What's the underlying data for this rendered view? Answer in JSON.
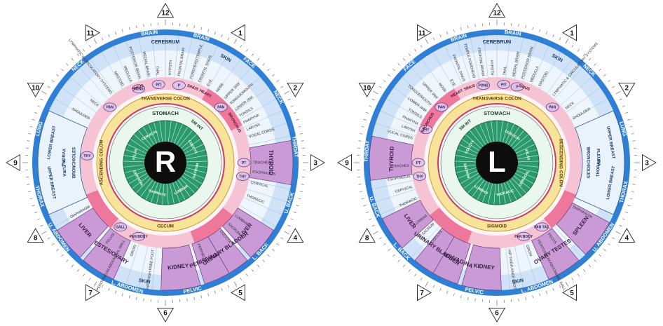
{
  "charts": [
    {
      "id": "right",
      "center_letter": "R",
      "clock_numbers": [
        "12",
        "1",
        "2",
        "3",
        "4",
        "5",
        "6",
        "7",
        "8",
        "9",
        "10",
        "11"
      ],
      "outer_labels": [
        {
          "angle": 353,
          "text": "BRAIN"
        },
        {
          "angle": 16,
          "text": "BRAIN"
        },
        {
          "angle": 40,
          "text": "FACE"
        },
        {
          "angle": 60,
          "text": "NECK"
        },
        {
          "angle": 83,
          "text": "THROAT"
        },
        {
          "angle": 108,
          "text": "U. BACK"
        },
        {
          "angle": 133,
          "text": "L. BACK"
        },
        {
          "angle": 168,
          "text": "PELVIC"
        },
        {
          "angle": 197,
          "text": "L. ABDOMEN"
        },
        {
          "angle": 235,
          "text": "U. ABDOMEN"
        },
        {
          "angle": 255,
          "text": "THORAX"
        },
        {
          "angle": 285,
          "text": "LUNG"
        },
        {
          "angle": 318,
          "text": "NECK"
        }
      ],
      "band_labels": [
        {
          "angle": 0,
          "text": "CEREBRUM"
        },
        {
          "angle": 30,
          "text": "SKIN"
        },
        {
          "angle": 190,
          "text": "SKIN"
        }
      ],
      "spoke_labels": [
        {
          "angle": 322,
          "text": "LYMPHATIC & CIRCULATORY SYSTEMS"
        },
        {
          "angle": 331,
          "text": "MASTOID"
        },
        {
          "angle": 337,
          "text": "MEDULLA"
        },
        {
          "angle": 343,
          "text": "POSTERIOR BRAIN"
        },
        {
          "angle": 349,
          "text": "MEDIAL BRAIN"
        },
        {
          "angle": 355,
          "text": "THAL"
        },
        {
          "angle": 3,
          "text": "HYPOTH"
        },
        {
          "angle": 9,
          "text": "FRONTAL BRAIN"
        },
        {
          "angle": 17,
          "text": "FOREHEAD/TEMPLE"
        },
        {
          "angle": 23,
          "text": "FRONTAL SINUS"
        },
        {
          "angle": 29,
          "text": "EYE"
        },
        {
          "angle": 36,
          "text": "NOSE"
        },
        {
          "angle": 43,
          "text": "UPPER JAW"
        },
        {
          "angle": 48,
          "text": "TONGUE/MOUTH"
        },
        {
          "angle": 53,
          "text": "LOWER JAW"
        },
        {
          "angle": 58,
          "text": "TONSILS"
        },
        {
          "angle": 63,
          "text": "PHARYNX"
        },
        {
          "angle": 68,
          "text": "LARYNX"
        },
        {
          "angle": 73,
          "text": "VOCAL CORDS"
        },
        {
          "angle": 90,
          "text": "TRACHEA"
        },
        {
          "angle": 96,
          "text": "ESOPHAGUS"
        },
        {
          "angle": 103,
          "text": "CERVICAL"
        },
        {
          "angle": 112,
          "text": "THORACIC"
        },
        {
          "angle": 127,
          "text": "LUMBAR"
        },
        {
          "angle": 134,
          "text": "SACRUM"
        },
        {
          "angle": 141,
          "text": "COCCYX"
        },
        {
          "angle": 158,
          "text": "PERINEUM"
        },
        {
          "angle": 188,
          "text": "HIP THIGH KNEE FOOT"
        },
        {
          "angle": 200,
          "text": "GROIN"
        },
        {
          "angle": 208,
          "text": "PERITONEUM ABDOMINAL WALL"
        },
        {
          "angle": 216,
          "text": "PELVIS"
        },
        {
          "angle": 240,
          "text": "DIAPHRAGM"
        },
        {
          "angle": 248,
          "text": "ARM"
        },
        {
          "angle": 256,
          "text": "HAND"
        },
        {
          "angle": 300,
          "text": "SHOULDER"
        },
        {
          "angle": 310,
          "text": "NECK"
        }
      ],
      "boxes": [
        {
          "name": "thyroid-box",
          "text": "THYROID"
        },
        {
          "name": "liver-box",
          "text": "LIVER"
        },
        {
          "name": "kidney-box",
          "text": "KIDNEY"
        },
        {
          "name": "testes-ovary-box",
          "text": "TESTES/OVARY"
        },
        {
          "name": "liver-box-2",
          "text": "LIVER"
        },
        {
          "name": "penis-vagina-box",
          "text": "PENIS/VAGINA"
        },
        {
          "name": "urinary-bladder-box",
          "text": "URINARY BLADDER"
        },
        {
          "name": "prostate-uterus-box",
          "text": "PROSTATE/UTERUS"
        }
      ],
      "lung_labels": {
        "upper": "UPPER BREAST",
        "lung": "LUNG",
        "pleura": "PLEURA",
        "thorax": "THORAX",
        "lower": "LOWER BREAST",
        "bronchioles": "BRONCHIOLES"
      },
      "small_bubbles": [
        "PAN",
        "PONS",
        "PIT",
        "P",
        "PAN",
        "PT",
        "THY",
        "THY",
        "GALL",
        "PAN BODY"
      ],
      "digestive": {
        "colon_top": "TRANSVERSE COLON",
        "colon_side": "ASCENDING COLON",
        "colon_bottom": "CECUM",
        "stomach": "STOMACH",
        "small_int": "SM INT",
        "sigmoid": "",
        "spine_ring": [
          "CERVICAL",
          "ATLAS",
          "CERVICAL",
          "THORACIC",
          "LUMBAR",
          "SACRUM",
          "COCCYX"
        ]
      },
      "sinus_labels": [
        "SINUS",
        "SINUS",
        "HEART",
        "BRONCHUS"
      ],
      "colors": {
        "outer_ring": "#2f7fd6",
        "band_light": "#cfe2f7",
        "band_pink": "#f5c3d4",
        "band_red": "#e83a6c",
        "box_purple": "#c99ad6",
        "colon_yellow": "#f7e49a",
        "collarette": "#c63a76",
        "center_green": "#2a9a6e"
      }
    },
    {
      "id": "left",
      "center_letter": "L",
      "clock_numbers": [
        "12",
        "1",
        "2",
        "3",
        "4",
        "5",
        "6",
        "7",
        "8",
        "9",
        "10",
        "11"
      ],
      "outer_labels": [
        {
          "angle": 343,
          "text": "BRAIN"
        },
        {
          "angle": 7,
          "text": "BRAIN"
        },
        {
          "angle": 45,
          "text": "NECK"
        },
        {
          "angle": 318,
          "text": "FACE"
        },
        {
          "angle": 275,
          "text": "THROAT"
        },
        {
          "angle": 250,
          "text": "U. BACK"
        },
        {
          "angle": 227,
          "text": "L. BACK"
        },
        {
          "angle": 190,
          "text": "PELVIC"
        },
        {
          "angle": 162,
          "text": "L. ABDOMEN"
        },
        {
          "angle": 125,
          "text": "U. ABDOMEN"
        },
        {
          "angle": 103,
          "text": "THORAX"
        },
        {
          "angle": 75,
          "text": "LUNG"
        }
      ],
      "band_labels": [
        {
          "angle": 0,
          "text": "CEREBRUM"
        },
        {
          "angle": 30,
          "text": "SKIN"
        },
        {
          "angle": 170,
          "text": "SKIN"
        }
      ],
      "spoke_labels": [
        {
          "angle": 338,
          "text": "FRONTAL SINUS"
        },
        {
          "angle": 345,
          "text": "TEMPLE FOREHEAD"
        },
        {
          "angle": 351,
          "text": "FRONTAL BRAIN"
        },
        {
          "angle": 357,
          "text": "HYPOTH"
        },
        {
          "angle": 5,
          "text": "THAL"
        },
        {
          "angle": 11,
          "text": "MEDIAL BRAIN"
        },
        {
          "angle": 17,
          "text": "POSTERIOR BRAIN"
        },
        {
          "angle": 23,
          "text": "MEDULLA"
        },
        {
          "angle": 29,
          "text": "MASTOID"
        },
        {
          "angle": 40,
          "text": "LYMPHATIC & CIRCULATORY SYSTEMS"
        },
        {
          "angle": 52,
          "text": "NECK"
        },
        {
          "angle": 60,
          "text": "SHOULDER"
        },
        {
          "angle": 331,
          "text": "EYE"
        },
        {
          "angle": 324,
          "text": "NOSE"
        },
        {
          "angle": 317,
          "text": "UPPER JAW"
        },
        {
          "angle": 311,
          "text": "TONGUE/MOUTH"
        },
        {
          "angle": 306,
          "text": "LOWER JAW"
        },
        {
          "angle": 301,
          "text": "TONSILS"
        },
        {
          "angle": 296,
          "text": "PHARYNX"
        },
        {
          "angle": 291,
          "text": "LARYNX"
        },
        {
          "angle": 286,
          "text": "VOCAL CORDS"
        },
        {
          "angle": 268,
          "text": "TRACHEA"
        },
        {
          "angle": 261,
          "text": "ESOPHAGUS"
        },
        {
          "angle": 254,
          "text": "CERVICAL"
        },
        {
          "angle": 246,
          "text": "THORACIC"
        },
        {
          "angle": 233,
          "text": "LUMBAR"
        },
        {
          "angle": 226,
          "text": "SACRUM"
        },
        {
          "angle": 219,
          "text": "COCCYX"
        },
        {
          "angle": 172,
          "text": "HIP THIGH KNEE FOOT"
        },
        {
          "angle": 160,
          "text": "GROIN"
        },
        {
          "angle": 152,
          "text": "PERITONEUM ABDOMINAL WALL"
        },
        {
          "angle": 144,
          "text": "PELVIS"
        },
        {
          "angle": 120,
          "text": "DIAPHRAGM"
        },
        {
          "angle": 112,
          "text": "ARM"
        },
        {
          "angle": 104,
          "text": "HAND"
        }
      ],
      "boxes": [
        {
          "name": "thyroid-box",
          "text": "THYROID"
        },
        {
          "name": "spleen-box",
          "text": "SPLEEN"
        },
        {
          "name": "kidney-box",
          "text": "KIDNEY"
        },
        {
          "name": "ovary-testes-box",
          "text": "OVARY TESTES"
        },
        {
          "name": "liver-box",
          "text": "LIVER"
        },
        {
          "name": "penis-vagina-box",
          "text": "PENIS/VAGINA"
        },
        {
          "name": "urinary-bladder-box",
          "text": "URINARY BLADDER"
        },
        {
          "name": "prostate-uterus-box",
          "text": "PROSTATE/UTERUS"
        }
      ],
      "lung_labels": {
        "upper": "UPPER BREAST",
        "lung": "LUNG",
        "pleura": "PLEURA",
        "thorax": "THORAX",
        "lower": "LOWER BREAST",
        "bronchioles": "BRONCHIOLES"
      },
      "small_bubbles": [
        "PAN",
        "PONS",
        "PIT",
        "P",
        "PAN",
        "PT",
        "THY",
        "THY",
        "PAN TAIL",
        "PAN BODY"
      ],
      "digestive": {
        "colon_top": "TRANSVERSE COLON",
        "colon_side": "DESCENDING COLON",
        "colon_bottom": "SIGMOID",
        "stomach": "STOMACH",
        "small_int": "SM INT",
        "sigmoid": "",
        "spine_ring": [
          "CERVICAL",
          "ATLAS",
          "CERVICAL",
          "THORACIC",
          "LUMBAR",
          "SACRUM",
          "COCCYX"
        ]
      },
      "sinus_labels": [
        "SINUS",
        "SINUS",
        "HEART",
        "BRONCHUS"
      ],
      "colors": {
        "outer_ring": "#2f7fd6",
        "band_light": "#cfe2f7",
        "band_pink": "#f5c3d4",
        "band_red": "#e83a6c",
        "box_purple": "#c99ad6",
        "colon_yellow": "#f7e49a",
        "collarette": "#c63a76",
        "center_green": "#2a9a6e"
      }
    }
  ]
}
